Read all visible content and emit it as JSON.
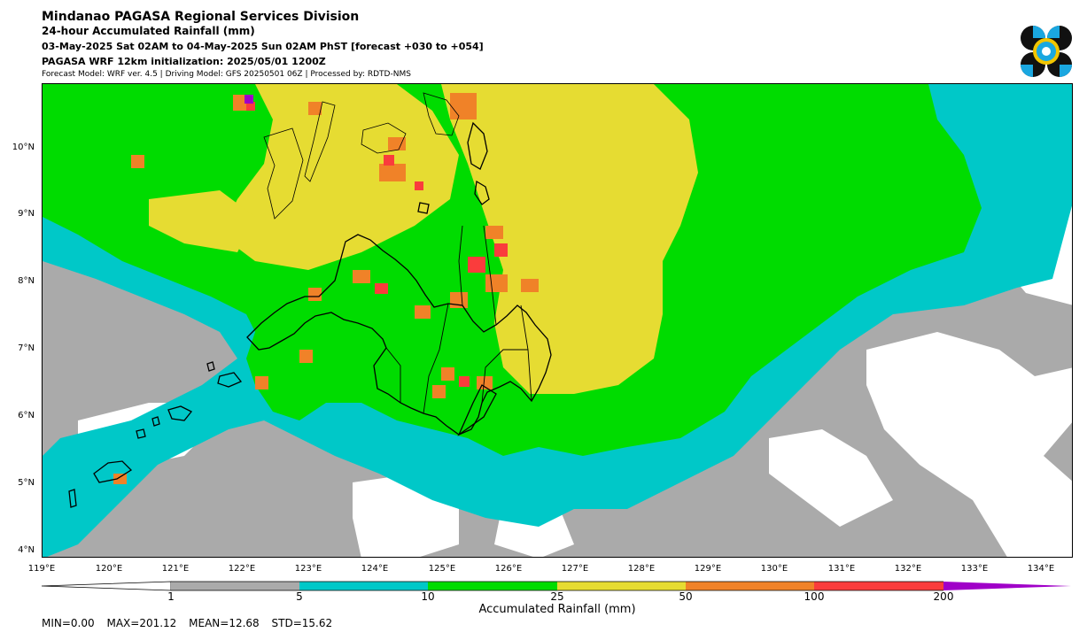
{
  "header": {
    "line1": "Mindanao PAGASA Regional Services Division",
    "line2": "24-hour Accumulated Rainfall (mm)",
    "line3": "03-May-2025 Sat 02AM to 04-May-2025 Sun 02AM PhST [forecast +030 to +054]",
    "line4": "PAGASA WRF 12km initialization: 2025/05/01 1200Z",
    "line5": "Forecast Model: WRF ver. 4.5 | Driving Model: GFS 20250501 06Z | Processed by: RDTD-NMS"
  },
  "map": {
    "lat_labels": [
      "10°N",
      "9°N",
      "8°N",
      "7°N",
      "6°N",
      "5°N",
      "4°N"
    ],
    "lon_labels": [
      "119°E",
      "120°E",
      "121°E",
      "122°E",
      "123°E",
      "124°E",
      "125°E",
      "126°E",
      "127°E",
      "128°E",
      "129°E",
      "130°E",
      "131°E",
      "132°E",
      "133°E",
      "134°E"
    ],
    "colors": {
      "none": "#ffffff",
      "1-5": "#aaaaaa",
      "5-10": "#00c8c8",
      "10-25": "#00dc00",
      "25-50": "#e6dc32",
      "50-100": "#f08228",
      "100-200": "#fa3c3c",
      "200+": "#a000c8"
    }
  },
  "colorbar": {
    "ticks": [
      "1",
      "5",
      "10",
      "25",
      "50",
      "100",
      "200"
    ],
    "label": "Accumulated Rainfall (mm)",
    "colors": [
      "#aaaaaa",
      "#00c8c8",
      "#00dc00",
      "#e6dc32",
      "#f08228",
      "#fa3c3c",
      "#a000c8"
    ]
  },
  "stats": {
    "min": "MIN=0.00",
    "max": "MAX=201.12",
    "mean": "MEAN=12.68",
    "std": "STD=15.62"
  }
}
